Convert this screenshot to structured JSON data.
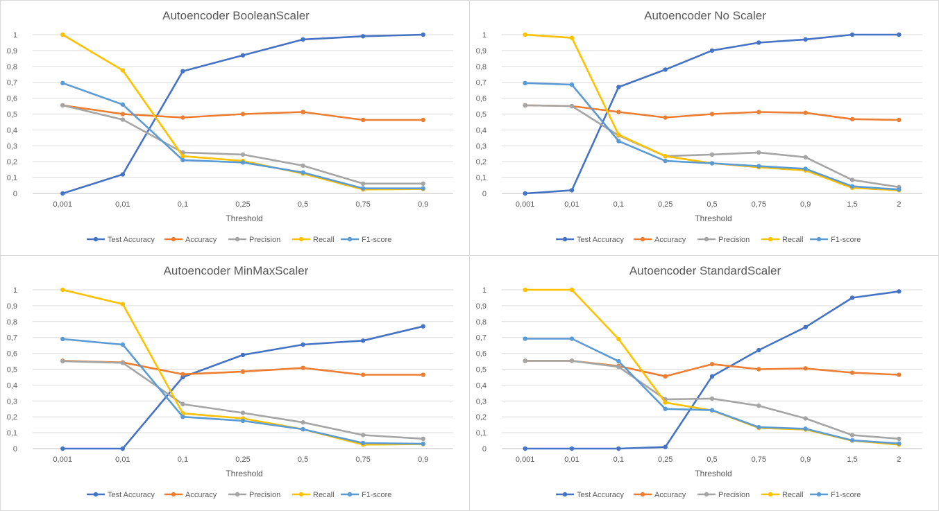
{
  "series_colors": {
    "Test Accuracy": "#4472c4",
    "Accuracy": "#ed7d31",
    "Precision": "#a5a5a5",
    "Recall": "#ffc000",
    "F1-score": "#5b9bd5"
  },
  "chart_data": [
    {
      "type": "line",
      "title": "Autoencoder BooleanScaler",
      "xlabel": "Threshold",
      "ylabel": "",
      "ylim": [
        0,
        1
      ],
      "yticks": [
        "0",
        "0,1",
        "0,2",
        "0,3",
        "0,4",
        "0,5",
        "0,6",
        "0,7",
        "0,8",
        "0,9",
        "1"
      ],
      "grid": true,
      "legend": "bottom",
      "categories": [
        "0,001",
        "0,01",
        "0,1",
        "0,25",
        "0,5",
        "0,75",
        "0,9"
      ],
      "series": [
        {
          "name": "Test Accuracy",
          "values": [
            0.0,
            0.12,
            0.77,
            0.87,
            0.97,
            0.99,
            1.0
          ]
        },
        {
          "name": "Accuracy",
          "values": [
            0.555,
            0.5,
            0.478,
            0.5,
            0.513,
            0.463,
            0.463
          ]
        },
        {
          "name": "Precision",
          "values": [
            0.555,
            0.465,
            0.258,
            0.245,
            0.175,
            0.062,
            0.062
          ]
        },
        {
          "name": "Recall",
          "values": [
            1.0,
            0.775,
            0.235,
            0.205,
            0.125,
            0.025,
            0.028
          ]
        },
        {
          "name": "F1-score",
          "values": [
            0.695,
            0.56,
            0.21,
            0.195,
            0.132,
            0.032,
            0.032
          ]
        }
      ]
    },
    {
      "type": "line",
      "title": "Autoencoder No Scaler",
      "xlabel": "Threshold",
      "ylabel": "",
      "ylim": [
        0,
        1
      ],
      "yticks": [
        "0",
        "0,1",
        "0,2",
        "0,3",
        "0,4",
        "0,5",
        "0,6",
        "0,7",
        "0,8",
        "0,9",
        "1"
      ],
      "grid": true,
      "legend": "bottom",
      "categories": [
        "0,001",
        "0,01",
        "0,1",
        "0,25",
        "0,5",
        "0,75",
        "0,9",
        "1,5",
        "2"
      ],
      "series": [
        {
          "name": "Test Accuracy",
          "values": [
            0.0,
            0.02,
            0.67,
            0.78,
            0.9,
            0.95,
            0.97,
            1.0,
            1.0
          ]
        },
        {
          "name": "Accuracy",
          "values": [
            0.555,
            0.55,
            0.513,
            0.478,
            0.5,
            0.513,
            0.508,
            0.468,
            0.463
          ]
        },
        {
          "name": "Precision",
          "values": [
            0.555,
            0.55,
            0.365,
            0.235,
            0.245,
            0.258,
            0.228,
            0.085,
            0.04
          ]
        },
        {
          "name": "Recall",
          "values": [
            1.0,
            0.98,
            0.37,
            0.235,
            0.19,
            0.165,
            0.145,
            0.035,
            0.02
          ]
        },
        {
          "name": "F1-score",
          "values": [
            0.695,
            0.685,
            0.33,
            0.205,
            0.19,
            0.172,
            0.155,
            0.045,
            0.025
          ]
        }
      ]
    },
    {
      "type": "line",
      "title": "Autoencoder MinMaxScaler",
      "xlabel": "Threshold",
      "ylabel": "",
      "ylim": [
        0,
        1
      ],
      "yticks": [
        "0",
        "0,1",
        "0,2",
        "0,3",
        "0,4",
        "0,5",
        "0,6",
        "0,7",
        "0,8",
        "0,9",
        "1"
      ],
      "grid": true,
      "legend": "bottom",
      "categories": [
        "0,001",
        "0,01",
        "0,1",
        "0,25",
        "0,5",
        "0,75",
        "0,9"
      ],
      "series": [
        {
          "name": "Test Accuracy",
          "values": [
            0.0,
            0.0,
            0.45,
            0.59,
            0.655,
            0.68,
            0.77
          ]
        },
        {
          "name": "Accuracy",
          "values": [
            0.553,
            0.543,
            0.468,
            0.485,
            0.508,
            0.465,
            0.465
          ]
        },
        {
          "name": "Precision",
          "values": [
            0.55,
            0.54,
            0.28,
            0.225,
            0.165,
            0.085,
            0.062
          ]
        },
        {
          "name": "Recall",
          "values": [
            1.0,
            0.91,
            0.222,
            0.19,
            0.122,
            0.025,
            0.028
          ]
        },
        {
          "name": "F1-score",
          "values": [
            0.69,
            0.655,
            0.2,
            0.175,
            0.122,
            0.035,
            0.03
          ]
        }
      ]
    },
    {
      "type": "line",
      "title": "Autoencoder StandardScaler",
      "xlabel": "Threshold",
      "ylabel": "",
      "ylim": [
        0,
        1
      ],
      "yticks": [
        "0",
        "0,1",
        "0,2",
        "0,3",
        "0,4",
        "0,5",
        "0,6",
        "0,7",
        "0,8",
        "0,9",
        "1"
      ],
      "grid": true,
      "legend": "bottom",
      "categories": [
        "0,001",
        "0,01",
        "0,1",
        "0,25",
        "0,5",
        "0,75",
        "0,9",
        "1,5",
        "2"
      ],
      "series": [
        {
          "name": "Test Accuracy",
          "values": [
            0.0,
            0.0,
            0.0,
            0.01,
            0.455,
            0.62,
            0.765,
            0.95,
            0.99
          ]
        },
        {
          "name": "Accuracy",
          "values": [
            0.553,
            0.553,
            0.52,
            0.455,
            0.532,
            0.5,
            0.505,
            0.478,
            0.465
          ]
        },
        {
          "name": "Precision",
          "values": [
            0.553,
            0.553,
            0.515,
            0.31,
            0.315,
            0.27,
            0.19,
            0.085,
            0.062
          ]
        },
        {
          "name": "Recall",
          "values": [
            1.0,
            1.0,
            0.69,
            0.29,
            0.24,
            0.13,
            0.12,
            0.05,
            0.025
          ]
        },
        {
          "name": "F1-score",
          "values": [
            0.692,
            0.692,
            0.55,
            0.25,
            0.242,
            0.135,
            0.125,
            0.052,
            0.032
          ]
        }
      ]
    }
  ]
}
